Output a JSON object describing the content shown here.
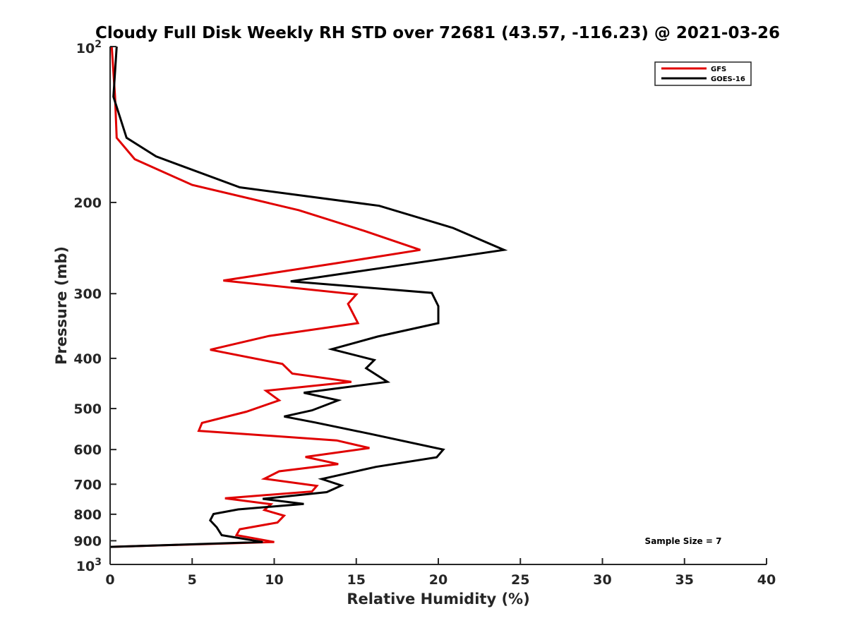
{
  "chart_data": {
    "type": "line",
    "title": "Cloudy Full Disk Weekly RH STD over 72681 (43.57, -116.23) @ 2021-03-26",
    "xlabel": "Relative Humidity (%)",
    "ylabel": "Pressure (mb)",
    "xlim": [
      0,
      40
    ],
    "ylim": [
      100,
      1000
    ],
    "y_scale": "log",
    "y_reversed": true,
    "x_ticks": [
      "0",
      "5",
      "10",
      "15",
      "20",
      "25",
      "30",
      "35",
      "40"
    ],
    "y_ticks": [
      {
        "value": 100,
        "base": "10",
        "exp": "2"
      },
      {
        "value": 200,
        "label": "200"
      },
      {
        "value": 300,
        "label": "300"
      },
      {
        "value": 400,
        "label": "400"
      },
      {
        "value": 500,
        "label": "500"
      },
      {
        "value": 600,
        "label": "600"
      },
      {
        "value": 700,
        "label": "700"
      },
      {
        "value": 800,
        "label": "800"
      },
      {
        "value": 900,
        "label": "900"
      },
      {
        "value": 1000,
        "base": "10",
        "exp": "3"
      }
    ],
    "grid": false,
    "legend_position": "top-right",
    "annotation": "Sample Size = 7",
    "series": [
      {
        "name": "GFS",
        "color": "#e00000",
        "points": [
          [
            0.1,
            100
          ],
          [
            0.3,
            125
          ],
          [
            0.4,
            150
          ],
          [
            1.5,
            165
          ],
          [
            5.0,
            185
          ],
          [
            11.5,
            207
          ],
          [
            15.5,
            227
          ],
          [
            18.9,
            247
          ],
          [
            13.8,
            262
          ],
          [
            6.9,
            283
          ],
          [
            15.0,
            301
          ],
          [
            14.5,
            314
          ],
          [
            15.1,
            342
          ],
          [
            9.7,
            362
          ],
          [
            6.1,
            385
          ],
          [
            10.5,
            410
          ],
          [
            11.1,
            428
          ],
          [
            14.7,
            444
          ],
          [
            9.5,
            462
          ],
          [
            10.3,
            482
          ],
          [
            8.3,
            507
          ],
          [
            5.6,
            533
          ],
          [
            5.4,
            552
          ],
          [
            13.8,
            576
          ],
          [
            15.8,
            596
          ],
          [
            11.9,
            620
          ],
          [
            13.9,
            640
          ],
          [
            10.3,
            661
          ],
          [
            9.4,
            683
          ],
          [
            12.6,
            705
          ],
          [
            12.3,
            723
          ],
          [
            7.0,
            745
          ],
          [
            9.8,
            765
          ],
          [
            9.4,
            785
          ],
          [
            10.6,
            805
          ],
          [
            10.2,
            830
          ],
          [
            7.9,
            855
          ],
          [
            7.7,
            878
          ],
          [
            10.0,
            905
          ],
          [
            0,
            925
          ]
        ]
      },
      {
        "name": "GOES-16",
        "color": "#000000",
        "points": [
          [
            0.4,
            100
          ],
          [
            0.2,
            125
          ],
          [
            1.0,
            150
          ],
          [
            2.8,
            163
          ],
          [
            7.9,
            187
          ],
          [
            16.4,
            203
          ],
          [
            20.9,
            224
          ],
          [
            24.0,
            247
          ],
          [
            16.4,
            268
          ],
          [
            11.0,
            284
          ],
          [
            19.6,
            299
          ],
          [
            20.0,
            317
          ],
          [
            20.0,
            342
          ],
          [
            16.3,
            363
          ],
          [
            13.5,
            384
          ],
          [
            16.1,
            403
          ],
          [
            15.6,
            418
          ],
          [
            16.9,
            444
          ],
          [
            11.8,
            466
          ],
          [
            13.9,
            482
          ],
          [
            12.3,
            504
          ],
          [
            10.6,
            518
          ],
          [
            12.5,
            532
          ],
          [
            15.9,
            560
          ],
          [
            20.3,
            600
          ],
          [
            19.9,
            621
          ],
          [
            16.2,
            648
          ],
          [
            12.9,
            684
          ],
          [
            14.1,
            704
          ],
          [
            13.2,
            725
          ],
          [
            9.3,
            747
          ],
          [
            11.8,
            764
          ],
          [
            7.8,
            783
          ],
          [
            6.3,
            799
          ],
          [
            6.1,
            822
          ],
          [
            6.5,
            848
          ],
          [
            6.8,
            878
          ],
          [
            9.3,
            905
          ],
          [
            0,
            925
          ]
        ]
      }
    ]
  }
}
